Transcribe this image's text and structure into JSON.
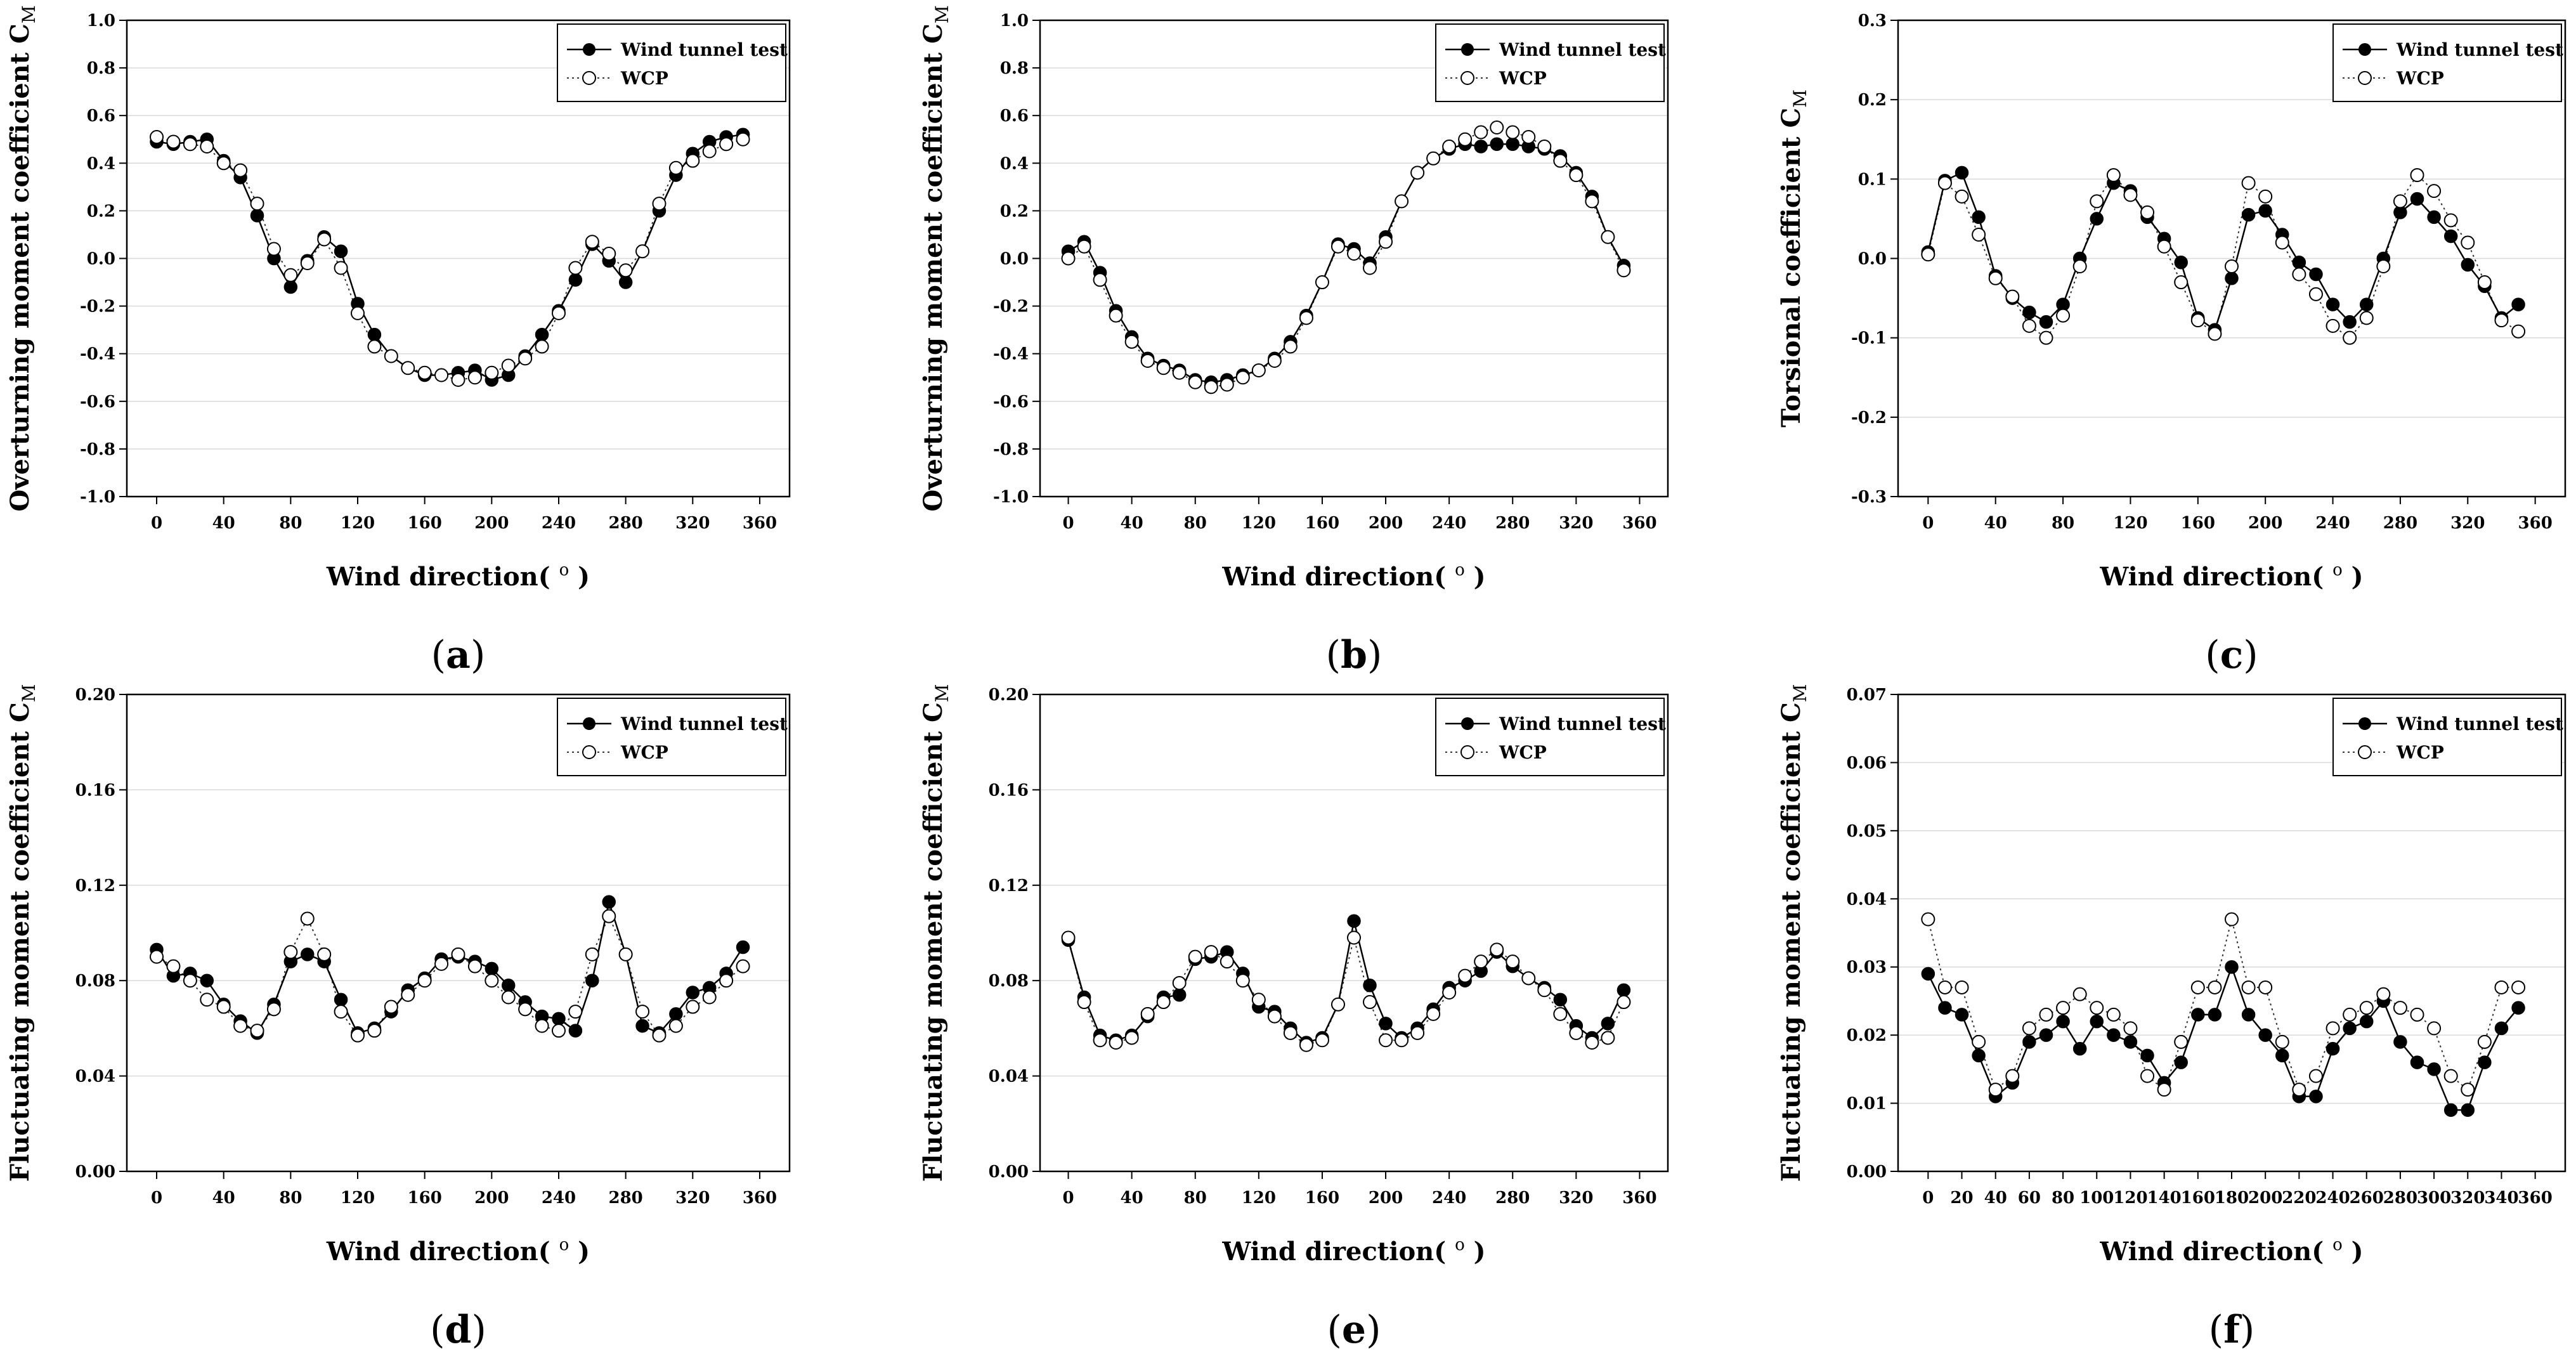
{
  "figure": {
    "legend_labels": [
      "Wind tunnel test",
      "WCP"
    ],
    "xlabel": "Wind direction(",
    "xlabel_unit": "o",
    "xlabel_close": ")"
  },
  "chart_data": [
    {
      "type": "line",
      "panel": "a",
      "ylabel": "Overturning moment coefficient C",
      "ylabel_sub": "M",
      "xlabel": "Wind direction( o )",
      "xlim": [
        0,
        360
      ],
      "ylim": [
        -1.0,
        1.0
      ],
      "xticks": [
        "0",
        "40",
        "80",
        "120",
        "160",
        "200",
        "240",
        "280",
        "320",
        "360"
      ],
      "yticks": [
        "-1.0",
        "-0.8",
        "-0.6",
        "-0.4",
        "-0.2",
        "0.0",
        "0.2",
        "0.4",
        "0.6",
        "0.8",
        "1.0"
      ],
      "legend_position": "top-right",
      "x": [
        0,
        10,
        20,
        30,
        40,
        50,
        60,
        70,
        80,
        90,
        100,
        110,
        120,
        130,
        140,
        150,
        160,
        170,
        180,
        190,
        200,
        210,
        220,
        230,
        240,
        250,
        260,
        270,
        280,
        290,
        300,
        310,
        320,
        330,
        340,
        350
      ],
      "series": [
        {
          "name": "Wind tunnel test",
          "values": [
            0.49,
            0.48,
            0.49,
            0.5,
            0.41,
            0.34,
            0.18,
            0.0,
            -0.12,
            -0.01,
            0.09,
            0.03,
            -0.19,
            -0.32,
            -0.41,
            -0.46,
            -0.49,
            -0.49,
            -0.48,
            -0.47,
            -0.51,
            -0.49,
            -0.41,
            -0.32,
            -0.22,
            -0.09,
            0.06,
            -0.01,
            -0.1,
            0.03,
            0.2,
            0.35,
            0.44,
            0.49,
            0.51,
            0.52
          ]
        },
        {
          "name": "WCP",
          "values": [
            0.51,
            0.49,
            0.48,
            0.47,
            0.4,
            0.37,
            0.23,
            0.04,
            -0.07,
            -0.02,
            0.08,
            -0.04,
            -0.23,
            -0.37,
            -0.41,
            -0.46,
            -0.48,
            -0.49,
            -0.51,
            -0.5,
            -0.48,
            -0.45,
            -0.42,
            -0.37,
            -0.23,
            -0.04,
            0.07,
            0.02,
            -0.05,
            0.03,
            0.23,
            0.38,
            0.41,
            0.45,
            0.48,
            0.5
          ]
        }
      ]
    },
    {
      "type": "line",
      "panel": "b",
      "ylabel": "Overturning moment coefficient C",
      "ylabel_sub": "M",
      "xlabel": "Wind direction( o )",
      "xlim": [
        0,
        360
      ],
      "ylim": [
        -1.0,
        1.0
      ],
      "xticks": [
        "0",
        "40",
        "80",
        "120",
        "160",
        "200",
        "240",
        "280",
        "320",
        "360"
      ],
      "yticks": [
        "-1.0",
        "-0.8",
        "-0.6",
        "-0.4",
        "-0.2",
        "0.0",
        "0.2",
        "0.4",
        "0.6",
        "0.8",
        "1.0"
      ],
      "legend_position": "top-right",
      "x": [
        0,
        10,
        20,
        30,
        40,
        50,
        60,
        70,
        80,
        90,
        100,
        110,
        120,
        130,
        140,
        150,
        160,
        170,
        180,
        190,
        200,
        210,
        220,
        230,
        240,
        250,
        260,
        270,
        280,
        290,
        300,
        310,
        320,
        330,
        340,
        350
      ],
      "series": [
        {
          "name": "Wind tunnel test",
          "values": [
            0.03,
            0.07,
            -0.06,
            -0.22,
            -0.33,
            -0.42,
            -0.45,
            -0.47,
            -0.51,
            -0.52,
            -0.51,
            -0.49,
            -0.47,
            -0.42,
            -0.35,
            -0.24,
            -0.1,
            0.06,
            0.04,
            -0.02,
            0.09,
            0.24,
            0.36,
            0.42,
            0.46,
            0.48,
            0.47,
            0.48,
            0.48,
            0.47,
            0.46,
            0.43,
            0.36,
            0.26,
            0.09,
            -0.03
          ]
        },
        {
          "name": "WCP",
          "values": [
            0.0,
            0.05,
            -0.09,
            -0.24,
            -0.35,
            -0.43,
            -0.46,
            -0.48,
            -0.52,
            -0.54,
            -0.53,
            -0.5,
            -0.47,
            -0.43,
            -0.37,
            -0.25,
            -0.1,
            0.05,
            0.02,
            -0.04,
            0.07,
            0.24,
            0.36,
            0.42,
            0.47,
            0.5,
            0.53,
            0.55,
            0.53,
            0.51,
            0.47,
            0.41,
            0.35,
            0.24,
            0.09,
            -0.05
          ]
        }
      ]
    },
    {
      "type": "line",
      "panel": "c",
      "ylabel": "Torsional coefficient C",
      "ylabel_sub": "M",
      "xlabel": "Wind direction( o )",
      "xlim": [
        0,
        360
      ],
      "ylim": [
        -0.3,
        0.3
      ],
      "xticks": [
        "0",
        "40",
        "80",
        "120",
        "160",
        "200",
        "240",
        "280",
        "320",
        "360"
      ],
      "yticks": [
        "-0.3",
        "-0.2",
        "-0.1",
        "0.0",
        "0.1",
        "0.2",
        "0.3"
      ],
      "legend_position": "top-right",
      "x": [
        0,
        10,
        20,
        30,
        40,
        50,
        60,
        70,
        80,
        90,
        100,
        110,
        120,
        130,
        140,
        150,
        160,
        170,
        180,
        190,
        200,
        210,
        220,
        230,
        240,
        250,
        260,
        270,
        280,
        290,
        300,
        310,
        320,
        330,
        340,
        350
      ],
      "series": [
        {
          "name": "Wind tunnel test",
          "values": [
            0.008,
            0.098,
            0.108,
            0.052,
            -0.022,
            -0.05,
            -0.068,
            -0.08,
            -0.058,
            0.0,
            0.05,
            0.095,
            0.085,
            0.052,
            0.025,
            -0.005,
            -0.075,
            -0.09,
            -0.025,
            0.055,
            0.06,
            0.03,
            -0.005,
            -0.02,
            -0.058,
            -0.08,
            -0.058,
            0.0,
            0.058,
            0.075,
            0.052,
            0.028,
            -0.008,
            -0.035,
            -0.075,
            -0.058
          ]
        },
        {
          "name": "WCP",
          "values": [
            0.005,
            0.095,
            0.078,
            0.03,
            -0.025,
            -0.048,
            -0.085,
            -0.1,
            -0.072,
            -0.01,
            0.072,
            0.105,
            0.08,
            0.058,
            0.015,
            -0.03,
            -0.078,
            -0.095,
            -0.01,
            0.095,
            0.078,
            0.02,
            -0.02,
            -0.045,
            -0.085,
            -0.1,
            -0.075,
            -0.01,
            0.072,
            0.105,
            0.085,
            0.048,
            0.02,
            -0.03,
            -0.078,
            -0.092
          ]
        }
      ]
    },
    {
      "type": "line",
      "panel": "d",
      "ylabel": "Fluctuating moment coefficient C",
      "ylabel_sub": "M",
      "xlabel": "Wind direction( o )",
      "xlim": [
        0,
        360
      ],
      "ylim": [
        0.0,
        0.2
      ],
      "xticks": [
        "0",
        "40",
        "80",
        "120",
        "160",
        "200",
        "240",
        "280",
        "320",
        "360"
      ],
      "yticks": [
        "0.00",
        "0.04",
        "0.08",
        "0.12",
        "0.16",
        "0.20"
      ],
      "legend_position": "top-right",
      "x": [
        0,
        10,
        20,
        30,
        40,
        50,
        60,
        70,
        80,
        90,
        100,
        110,
        120,
        130,
        140,
        150,
        160,
        170,
        180,
        190,
        200,
        210,
        220,
        230,
        240,
        250,
        260,
        270,
        280,
        290,
        300,
        310,
        320,
        330,
        340,
        350
      ],
      "series": [
        {
          "name": "Wind tunnel test",
          "values": [
            0.093,
            0.082,
            0.083,
            0.08,
            0.07,
            0.063,
            0.058,
            0.07,
            0.088,
            0.091,
            0.088,
            0.072,
            0.058,
            0.06,
            0.067,
            0.076,
            0.081,
            0.089,
            0.09,
            0.088,
            0.085,
            0.078,
            0.071,
            0.065,
            0.064,
            0.059,
            0.08,
            0.113,
            0.091,
            0.061,
            0.058,
            0.066,
            0.075,
            0.077,
            0.083,
            0.094
          ]
        },
        {
          "name": "WCP",
          "values": [
            0.09,
            0.086,
            0.08,
            0.072,
            0.069,
            0.061,
            0.059,
            0.068,
            0.092,
            0.106,
            0.091,
            0.067,
            0.057,
            0.059,
            0.069,
            0.074,
            0.08,
            0.087,
            0.091,
            0.086,
            0.08,
            0.073,
            0.068,
            0.061,
            0.059,
            0.067,
            0.091,
            0.107,
            0.091,
            0.067,
            0.057,
            0.061,
            0.069,
            0.073,
            0.08,
            0.086
          ]
        }
      ]
    },
    {
      "type": "line",
      "panel": "e",
      "ylabel": "Fluctuating moment coefficient C",
      "ylabel_sub": "M",
      "xlabel": "Wind direction( o )",
      "xlim": [
        0,
        360
      ],
      "ylim": [
        0.0,
        0.2
      ],
      "xticks": [
        "0",
        "40",
        "80",
        "120",
        "160",
        "200",
        "240",
        "280",
        "320",
        "360"
      ],
      "yticks": [
        "0.00",
        "0.04",
        "0.08",
        "0.12",
        "0.16",
        "0.20"
      ],
      "legend_position": "top-right",
      "x": [
        0,
        10,
        20,
        30,
        40,
        50,
        60,
        70,
        80,
        90,
        100,
        110,
        120,
        130,
        140,
        150,
        160,
        170,
        180,
        190,
        200,
        210,
        220,
        230,
        240,
        250,
        260,
        270,
        280,
        290,
        300,
        310,
        320,
        330,
        340,
        350
      ],
      "series": [
        {
          "name": "Wind tunnel test",
          "values": [
            0.097,
            0.073,
            0.057,
            0.055,
            0.057,
            0.065,
            0.073,
            0.074,
            0.089,
            0.09,
            0.092,
            0.083,
            0.069,
            0.067,
            0.06,
            0.054,
            0.056,
            0.07,
            0.105,
            0.078,
            0.062,
            0.056,
            0.06,
            0.068,
            0.077,
            0.08,
            0.084,
            0.092,
            0.086,
            0.081,
            0.077,
            0.072,
            0.061,
            0.056,
            0.062,
            0.076
          ]
        },
        {
          "name": "WCP",
          "values": [
            0.098,
            0.071,
            0.055,
            0.054,
            0.056,
            0.066,
            0.071,
            0.079,
            0.09,
            0.092,
            0.088,
            0.08,
            0.072,
            0.065,
            0.058,
            0.053,
            0.055,
            0.07,
            0.098,
            0.071,
            0.055,
            0.055,
            0.058,
            0.066,
            0.075,
            0.082,
            0.088,
            0.093,
            0.088,
            0.081,
            0.076,
            0.066,
            0.058,
            0.054,
            0.056,
            0.071
          ]
        }
      ]
    },
    {
      "type": "line",
      "panel": "f",
      "ylabel": "Fluctuating moment coefficient C",
      "ylabel_sub": "M",
      "xlabel": "Wind direction( o )",
      "xlim": [
        0,
        360
      ],
      "ylim": [
        0.0,
        0.07
      ],
      "xticks": [
        "0",
        "20",
        "40",
        "60",
        "80",
        "100",
        "120",
        "140",
        "160",
        "180",
        "200",
        "220",
        "240",
        "260",
        "280",
        "300",
        "320",
        "340",
        "360"
      ],
      "yticks": [
        "0.00",
        "0.01",
        "0.02",
        "0.03",
        "0.04",
        "0.05",
        "0.06",
        "0.07"
      ],
      "legend_position": "top-right",
      "x": [
        0,
        10,
        20,
        30,
        40,
        50,
        60,
        70,
        80,
        90,
        100,
        110,
        120,
        130,
        140,
        150,
        160,
        170,
        180,
        190,
        200,
        210,
        220,
        230,
        240,
        250,
        260,
        270,
        280,
        290,
        300,
        310,
        320,
        330,
        340,
        350
      ],
      "series": [
        {
          "name": "Wind tunnel test",
          "values": [
            0.029,
            0.024,
            0.023,
            0.017,
            0.011,
            0.013,
            0.019,
            0.02,
            0.022,
            0.018,
            0.022,
            0.02,
            0.019,
            0.017,
            0.013,
            0.016,
            0.023,
            0.023,
            0.03,
            0.023,
            0.02,
            0.017,
            0.011,
            0.011,
            0.018,
            0.021,
            0.022,
            0.025,
            0.019,
            0.016,
            0.015,
            0.009,
            0.009,
            0.016,
            0.021,
            0.024
          ]
        },
        {
          "name": "WCP",
          "values": [
            0.037,
            0.027,
            0.027,
            0.019,
            0.012,
            0.014,
            0.021,
            0.023,
            0.024,
            0.026,
            0.024,
            0.023,
            0.021,
            0.014,
            0.012,
            0.019,
            0.027,
            0.027,
            0.037,
            0.027,
            0.027,
            0.019,
            0.012,
            0.014,
            0.021,
            0.023,
            0.024,
            0.026,
            0.024,
            0.023,
            0.021,
            0.014,
            0.012,
            0.019,
            0.027,
            0.027
          ]
        }
      ]
    }
  ]
}
